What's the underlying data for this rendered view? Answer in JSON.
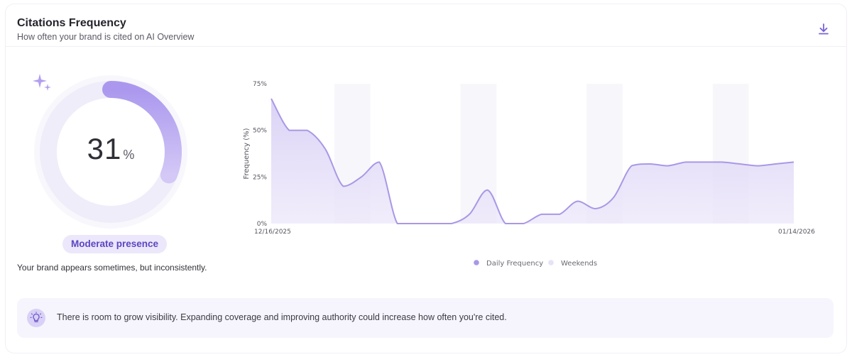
{
  "header": {
    "title": "Citations Frequency",
    "subtitle": "How often your brand is cited on AI Overview",
    "download_icon": "download-icon"
  },
  "presence": {
    "percent_value": 31,
    "percent": "31",
    "unit": "%",
    "badge": "Moderate presence",
    "description": "Your brand appears sometimes, but inconsistently.",
    "icon": "sparkle-icon",
    "ring_color": "#b6a6ee",
    "ring_track_color": "#efedf9"
  },
  "chart_data": {
    "type": "area",
    "ylabel": "Frequency (%)",
    "ylim": [
      0,
      75
    ],
    "yticks": [
      "0%",
      "25%",
      "50%",
      "75%"
    ],
    "x_start_label": "12/16/2025",
    "x_end_label": "01/14/2026",
    "x_start": "2025-12-16",
    "x_end": "2026-01-14",
    "series": [
      {
        "name": "Daily Frequency",
        "color": "#a998e6",
        "fill": "#ece7fa",
        "x": [
          "2025-12-16",
          "2025-12-17",
          "2025-12-18",
          "2025-12-19",
          "2025-12-20",
          "2025-12-21",
          "2025-12-22",
          "2025-12-23",
          "2025-12-24",
          "2025-12-25",
          "2025-12-26",
          "2025-12-27",
          "2025-12-28",
          "2025-12-29",
          "2025-12-30",
          "2025-12-31",
          "2026-01-01",
          "2026-01-02",
          "2026-01-03",
          "2026-01-04",
          "2026-01-05",
          "2026-01-06",
          "2026-01-07",
          "2026-01-08",
          "2026-01-09",
          "2026-01-10",
          "2026-01-11",
          "2026-01-12",
          "2026-01-13",
          "2026-01-14"
        ],
        "values": [
          67,
          50,
          50,
          40,
          20,
          25,
          33,
          0,
          0,
          0,
          0,
          5,
          18,
          0,
          0,
          5,
          5,
          12,
          8,
          14,
          31,
          32,
          31,
          33,
          33,
          33,
          32,
          31,
          32,
          33
        ]
      }
    ],
    "weekends": [
      [
        "2025-12-20",
        "2025-12-21"
      ],
      [
        "2025-12-27",
        "2025-12-28"
      ],
      [
        "2026-01-03",
        "2026-01-04"
      ],
      [
        "2026-01-10",
        "2026-01-11"
      ]
    ],
    "legend": [
      {
        "label": "Daily Frequency",
        "color": "#a998e6"
      },
      {
        "label": "Weekends",
        "color": "#e6e2f7"
      }
    ],
    "legend_position": "bottom-center",
    "grid": false
  },
  "insight": {
    "icon": "lightbulb-icon",
    "text": "There is room to grow visibility. Expanding coverage and improving authority could increase how often you're cited."
  }
}
